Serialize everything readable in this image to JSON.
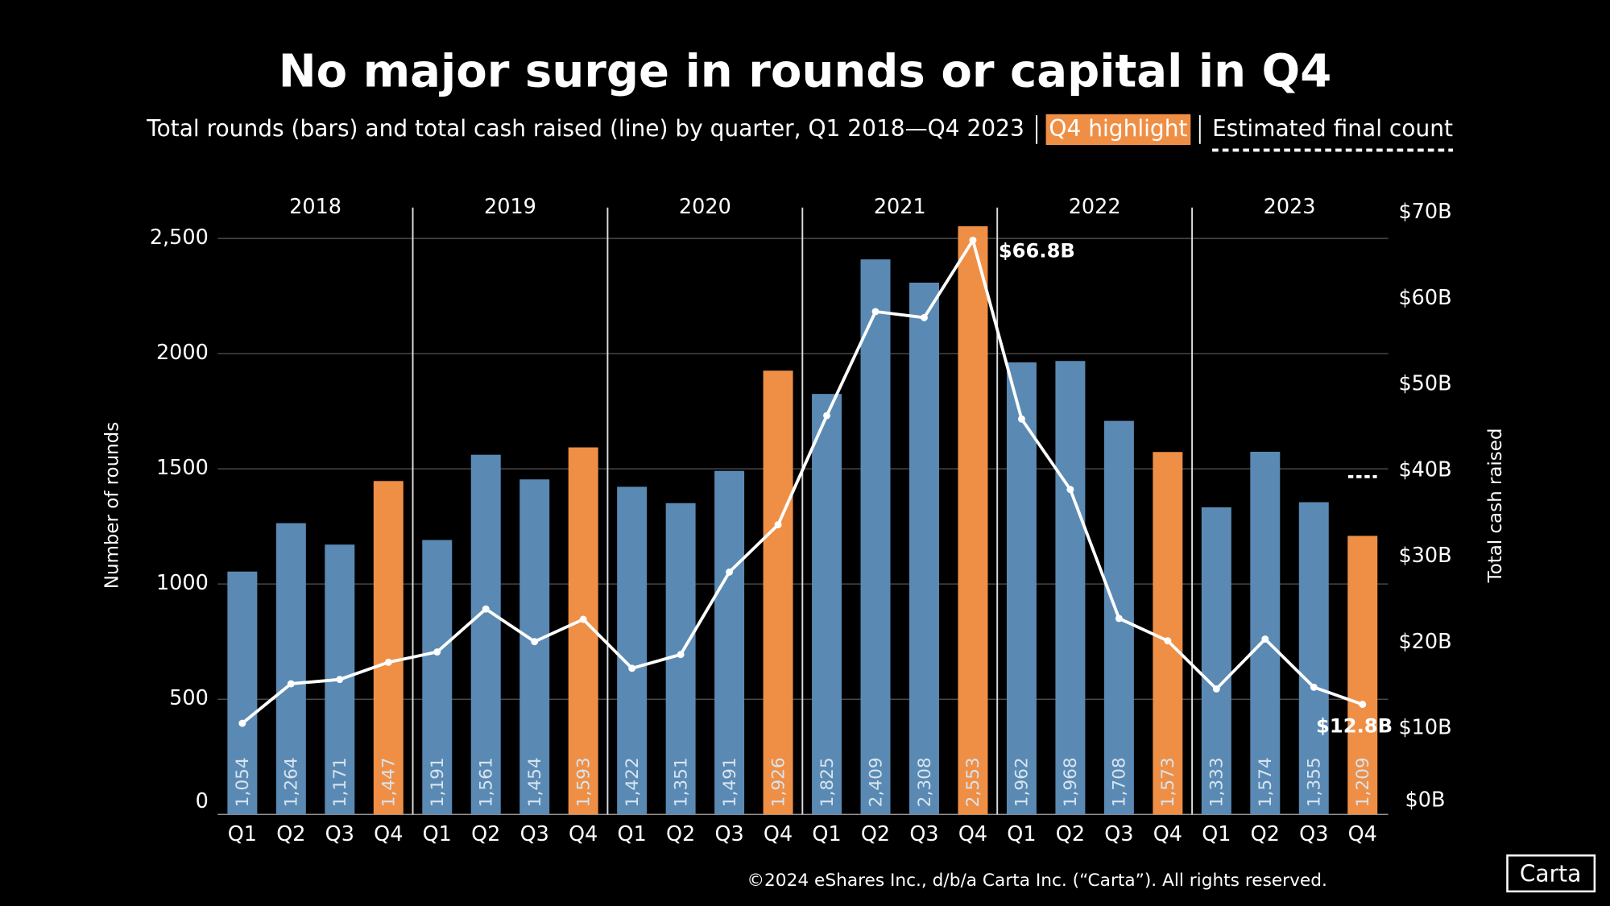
{
  "chart_data": {
    "type": "bar-line",
    "title": "No major surge in rounds or capital in Q4",
    "subtitle": "Total rounds (bars) and total cash raised (line) by quarter, Q1 2018—Q4 2023",
    "legend": [
      {
        "label": "Q4 highlight",
        "color": "#ef8f45"
      },
      {
        "label": "Estimated final count",
        "style": "dashed"
      }
    ],
    "group_labels": [
      "2018",
      "2019",
      "2020",
      "2021",
      "2022",
      "2023"
    ],
    "categories": [
      "Q1",
      "Q2",
      "Q3",
      "Q4",
      "Q1",
      "Q2",
      "Q3",
      "Q4",
      "Q1",
      "Q2",
      "Q3",
      "Q4",
      "Q1",
      "Q2",
      "Q3",
      "Q4",
      "Q1",
      "Q2",
      "Q3",
      "Q4",
      "Q1",
      "Q2",
      "Q3",
      "Q4"
    ],
    "series": [
      {
        "name": "Number of rounds",
        "type": "bar",
        "axis": "y",
        "values": [
          1054,
          1264,
          1171,
          1447,
          1191,
          1561,
          1454,
          1593,
          1422,
          1351,
          1491,
          1926,
          1825,
          2409,
          2308,
          2553,
          1962,
          1968,
          1708,
          1573,
          1333,
          1574,
          1355,
          1209
        ],
        "value_labels": [
          "1,054",
          "1,264",
          "1,171",
          "1,447",
          "1,191",
          "1,561",
          "1,454",
          "1,593",
          "1,422",
          "1,351",
          "1,491",
          "1,926",
          "1,825",
          "2,409",
          "2,308",
          "2,553",
          "1,962",
          "1,968",
          "1,708",
          "1,573",
          "1,333",
          "1,574",
          "1,355",
          "1,209"
        ],
        "colors": [
          "#5a8ab4",
          "#5a8ab4",
          "#5a8ab4",
          "#ef8f45",
          "#5a8ab4",
          "#5a8ab4",
          "#5a8ab4",
          "#ef8f45",
          "#5a8ab4",
          "#5a8ab4",
          "#5a8ab4",
          "#ef8f45",
          "#5a8ab4",
          "#5a8ab4",
          "#5a8ab4",
          "#ef8f45",
          "#5a8ab4",
          "#5a8ab4",
          "#5a8ab4",
          "#ef8f45",
          "#5a8ab4",
          "#5a8ab4",
          "#5a8ab4",
          "#ef8f45"
        ],
        "estimated_values": [
          null,
          null,
          null,
          null,
          null,
          null,
          null,
          null,
          null,
          null,
          null,
          null,
          null,
          null,
          null,
          null,
          null,
          null,
          null,
          null,
          null,
          null,
          null,
          1466
        ]
      },
      {
        "name": "Total cash raised",
        "type": "line",
        "axis": "y2",
        "color": "#ffffff",
        "values": [
          10.6,
          15.2,
          15.7,
          17.7,
          18.9,
          23.9,
          20.1,
          22.7,
          17.0,
          18.6,
          28.2,
          33.7,
          46.4,
          58.5,
          57.8,
          66.8,
          46.0,
          37.8,
          22.8,
          20.2,
          14.6,
          20.4,
          14.8,
          12.8
        ],
        "value_labels": [
          null,
          null,
          null,
          null,
          null,
          null,
          null,
          null,
          null,
          null,
          null,
          null,
          null,
          null,
          null,
          "$66.8B",
          null,
          null,
          null,
          null,
          null,
          null,
          null,
          "$12.8B"
        ]
      }
    ],
    "ylabel": "Number of rounds",
    "y2label": "Total cash raised",
    "ylim": [
      0,
      2500
    ],
    "yticks": [
      0,
      500,
      1000,
      1500,
      2000,
      {
        "value": 2500,
        "label": "2,500"
      }
    ],
    "y2lim": [
      0,
      70
    ],
    "y2ticks": [
      {
        "value": 0,
        "label": "$0B"
      },
      {
        "value": 10,
        "label": "$10B"
      },
      {
        "value": 20,
        "label": "$20B"
      },
      {
        "value": 30,
        "label": "$30B"
      },
      {
        "value": 40,
        "label": "$40B"
      },
      {
        "value": 50,
        "label": "$50B"
      },
      {
        "value": 60,
        "label": "$60B"
      },
      {
        "value": 70,
        "label": "$70B"
      }
    ],
    "grid": true,
    "footer": "©2024 eShares Inc., d/b/a Carta Inc. (“Carta”). All rights reserved.",
    "logo": "Carta"
  }
}
